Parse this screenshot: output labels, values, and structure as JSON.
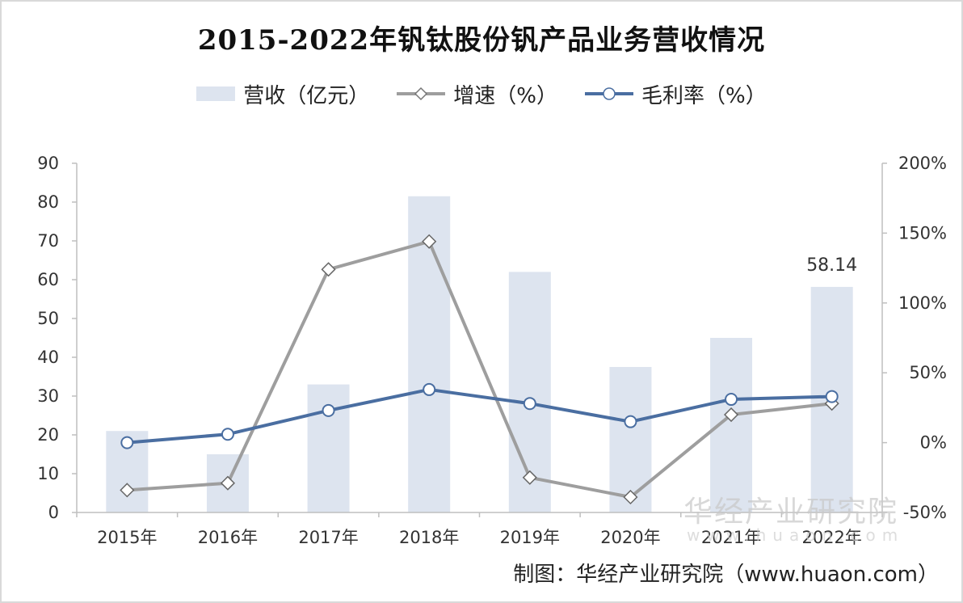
{
  "title": "2015-2022年钒钛股份钒产品业务营收情况",
  "legend": {
    "revenue": "营收（亿元）",
    "growth": "增速（%）",
    "margin": "毛利率（%）"
  },
  "source": "制图：华经产业研究院（www.huaon.com）",
  "watermark": "华经产业研究院",
  "watermark_url": "www.huaon.com",
  "colors": {
    "bar": "#dde4ef",
    "growth": "#9e9e9e",
    "margin": "#4a6ea1"
  },
  "chart_data": {
    "type": "bar",
    "categories": [
      "2015年",
      "2016年",
      "2017年",
      "2018年",
      "2019年",
      "2020年",
      "2021年",
      "2022年"
    ],
    "series": [
      {
        "name": "营收（亿元）",
        "type": "bar",
        "axis": "left",
        "values": [
          21,
          15,
          33,
          81.5,
          62,
          37.5,
          45,
          58.14
        ]
      },
      {
        "name": "增速（%）",
        "type": "line",
        "axis": "right",
        "values": [
          -34,
          -29,
          124,
          144,
          -25,
          -39,
          20,
          28
        ]
      },
      {
        "name": "毛利率（%）",
        "type": "line",
        "axis": "right",
        "values": [
          0,
          6,
          23,
          38,
          28,
          15,
          31,
          33
        ]
      }
    ],
    "data_labels": [
      {
        "category": "2022年",
        "text": "58.14"
      }
    ],
    "y_left": {
      "ylim": [
        0,
        90
      ],
      "ticks": [
        "0",
        "10",
        "20",
        "30",
        "40",
        "50",
        "60",
        "70",
        "80",
        "90"
      ]
    },
    "y_right": {
      "ylim": [
        -50,
        200
      ],
      "ticks": [
        "-50%",
        "0%",
        "50%",
        "100%",
        "150%",
        "200%"
      ]
    },
    "grid": false,
    "legend_position": "top"
  }
}
